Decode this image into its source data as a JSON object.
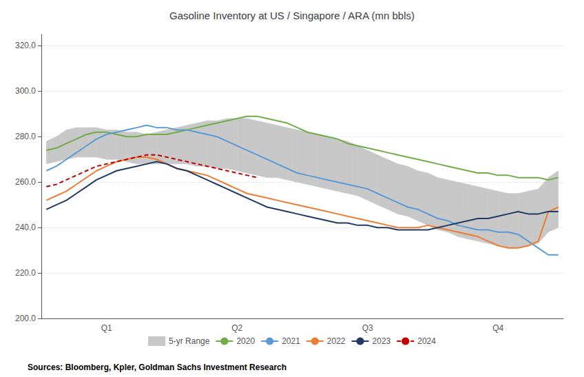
{
  "chart_data": {
    "type": "line",
    "title": "Gasoline Inventory at US / Singapore / ARA (mn bbls)",
    "annotations": [
      "Sources: Bloomberg, Kpler, Goldman Sachs Investment Research"
    ],
    "categories": [
      null,
      null,
      null,
      null,
      null,
      null,
      "Q1",
      null,
      null,
      null,
      null,
      null,
      null,
      null,
      null,
      null,
      null,
      null,
      null,
      "Q2",
      null,
      null,
      null,
      null,
      null,
      null,
      null,
      null,
      null,
      null,
      null,
      null,
      "Q3",
      null,
      null,
      null,
      null,
      null,
      null,
      null,
      null,
      null,
      null,
      null,
      null,
      "Q4",
      null,
      null,
      null,
      null,
      null,
      null
    ],
    "ylim": [
      200.0,
      325.0
    ],
    "yticks": [
      {
        "value": 200,
        "label": "200.0"
      },
      {
        "value": 220,
        "label": "220.0"
      },
      {
        "value": 240,
        "label": "240.0"
      },
      {
        "value": 260,
        "label": "260.0"
      },
      {
        "value": 280,
        "label": "280.0"
      },
      {
        "value": 300,
        "label": "300.0"
      },
      {
        "value": 320,
        "label": "320.0"
      }
    ],
    "grid": true,
    "legend": "bottom",
    "series": [
      {
        "name": "5-yr Range",
        "type": "band",
        "color": "#c8c8c8",
        "upper": [
          278,
          280,
          283,
          284,
          284,
          284,
          283,
          283,
          282,
          282,
          281,
          282,
          283,
          284,
          285,
          286,
          287,
          287,
          288,
          288,
          288,
          287,
          286,
          285,
          284,
          283,
          282,
          281,
          280,
          279,
          278,
          276,
          274,
          272,
          270,
          268,
          267,
          265,
          264,
          262,
          261,
          260,
          259,
          258,
          257,
          256,
          255,
          255,
          256,
          257,
          262,
          265
        ],
        "lower": [
          268,
          269,
          270,
          271,
          271,
          271,
          270,
          270,
          269,
          268,
          268,
          268,
          268,
          268,
          268,
          267,
          267,
          266,
          266,
          265,
          264,
          263,
          262,
          262,
          261,
          260,
          259,
          258,
          257,
          256,
          255,
          254,
          252,
          250,
          248,
          246,
          245,
          243,
          241,
          239,
          238,
          236,
          235,
          234,
          233,
          232,
          231,
          231,
          232,
          233,
          238,
          240
        ]
      },
      {
        "name": "2020",
        "type": "line",
        "color": "#70ad47",
        "line_style": "solid",
        "values": [
          274,
          275,
          277,
          279,
          281,
          282,
          282,
          281,
          280,
          280,
          281,
          281,
          281,
          282,
          283,
          284,
          285,
          286,
          287,
          288,
          289,
          289,
          288,
          287,
          286,
          284,
          282,
          281,
          280,
          279,
          277,
          276,
          275,
          274,
          273,
          272,
          271,
          270,
          269,
          268,
          267,
          266,
          265,
          264,
          264,
          263,
          263,
          262,
          262,
          262,
          261,
          262
        ]
      },
      {
        "name": "2021",
        "type": "line",
        "color": "#5b9bd5",
        "line_style": "solid",
        "values": [
          265,
          267,
          270,
          273,
          276,
          279,
          281,
          282,
          283,
          284,
          285,
          284,
          284,
          283,
          283,
          282,
          281,
          280,
          278,
          276,
          274,
          272,
          270,
          268,
          266,
          264,
          263,
          262,
          261,
          260,
          259,
          258,
          257,
          255,
          253,
          251,
          249,
          248,
          246,
          244,
          243,
          241,
          240,
          239,
          239,
          238,
          238,
          237,
          234,
          231,
          228,
          228
        ]
      },
      {
        "name": "2022",
        "type": "line",
        "color": "#ed7d31",
        "line_style": "solid",
        "values": [
          252,
          254,
          256,
          259,
          262,
          265,
          267,
          269,
          270,
          271,
          271,
          270,
          268,
          266,
          265,
          264,
          263,
          261,
          259,
          257,
          255,
          254,
          253,
          252,
          251,
          250,
          249,
          248,
          247,
          246,
          245,
          244,
          243,
          242,
          241,
          240,
          240,
          240,
          241,
          240,
          239,
          238,
          237,
          236,
          234,
          232,
          231,
          231,
          232,
          234,
          247,
          249
        ]
      },
      {
        "name": "2023",
        "type": "line",
        "color": "#203864",
        "line_style": "solid",
        "values": [
          248,
          250,
          252,
          255,
          258,
          261,
          263,
          265,
          266,
          267,
          268,
          269,
          268,
          266,
          265,
          263,
          261,
          259,
          257,
          255,
          253,
          251,
          249,
          248,
          247,
          246,
          245,
          244,
          243,
          242,
          242,
          241,
          241,
          240,
          240,
          239,
          239,
          239,
          239,
          240,
          241,
          242,
          243,
          244,
          244,
          245,
          246,
          247,
          246,
          246,
          247,
          247
        ]
      },
      {
        "name": "2024",
        "type": "line",
        "color": "#c00000",
        "line_style": "dashed",
        "values": [
          258,
          259,
          261,
          263,
          265,
          267,
          268,
          269,
          270,
          271,
          272,
          272,
          271,
          270,
          269,
          268,
          267,
          266,
          265,
          264,
          263,
          262,
          null,
          null,
          null,
          null,
          null,
          null,
          null,
          null,
          null,
          null,
          null,
          null,
          null,
          null,
          null,
          null,
          null,
          null,
          null,
          null,
          null,
          null,
          null,
          null,
          null,
          null,
          null,
          null,
          null,
          null
        ]
      }
    ]
  }
}
